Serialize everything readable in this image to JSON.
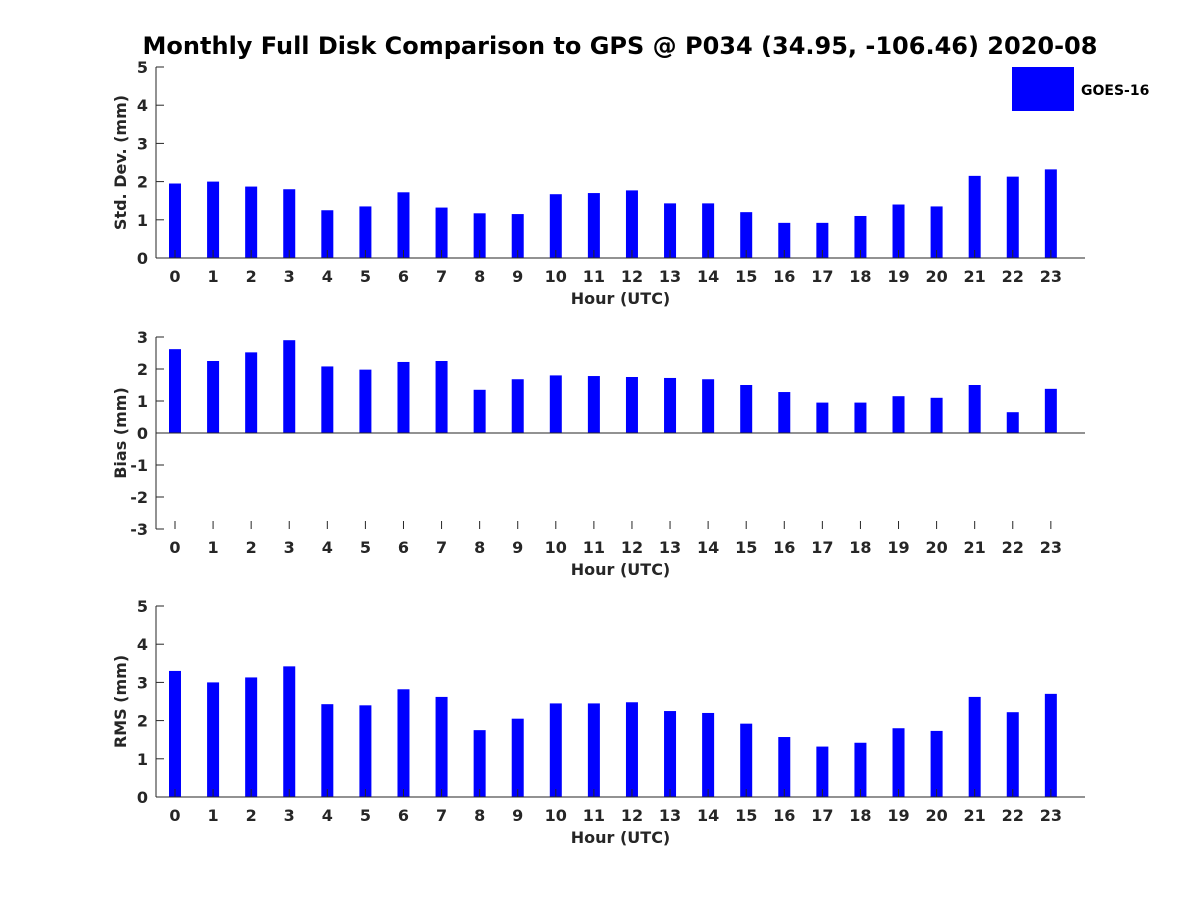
{
  "title": "Monthly Full Disk Comparison to GPS @ P034 (34.95, -106.46) 2020-08",
  "legend": {
    "label": "GOES-16",
    "color": "#0000ff"
  },
  "chart_data": [
    {
      "type": "bar",
      "name": "std",
      "categories": [
        "0",
        "1",
        "2",
        "3",
        "4",
        "5",
        "6",
        "7",
        "8",
        "9",
        "10",
        "11",
        "12",
        "13",
        "14",
        "15",
        "16",
        "17",
        "18",
        "19",
        "20",
        "21",
        "22",
        "23"
      ],
      "values": [
        1.95,
        2.0,
        1.87,
        1.8,
        1.25,
        1.35,
        1.72,
        1.32,
        1.17,
        1.15,
        1.67,
        1.7,
        1.77,
        1.43,
        1.43,
        1.2,
        0.92,
        0.92,
        1.1,
        1.4,
        1.35,
        2.15,
        2.13,
        2.32
      ],
      "series": [
        {
          "name": "GOES-16",
          "values": [
            1.95,
            2.0,
            1.87,
            1.8,
            1.25,
            1.35,
            1.72,
            1.32,
            1.17,
            1.15,
            1.67,
            1.7,
            1.77,
            1.43,
            1.43,
            1.2,
            0.92,
            0.92,
            1.1,
            1.4,
            1.35,
            2.15,
            2.13,
            2.32
          ]
        }
      ],
      "xlabel": "Hour (UTC)",
      "ylabel": "Std. Dev. (mm)",
      "ylim": [
        0,
        5
      ],
      "yticks": [
        "0",
        "1",
        "2",
        "3",
        "4",
        "5"
      ],
      "grid": false
    },
    {
      "type": "bar",
      "name": "bias",
      "categories": [
        "0",
        "1",
        "2",
        "3",
        "4",
        "5",
        "6",
        "7",
        "8",
        "9",
        "10",
        "11",
        "12",
        "13",
        "14",
        "15",
        "16",
        "17",
        "18",
        "19",
        "20",
        "21",
        "22",
        "23"
      ],
      "values": [
        2.62,
        2.25,
        2.52,
        2.9,
        2.08,
        1.98,
        2.22,
        2.25,
        1.35,
        1.68,
        1.8,
        1.78,
        1.75,
        1.72,
        1.68,
        1.5,
        1.28,
        0.95,
        0.95,
        1.15,
        1.1,
        1.5,
        0.65,
        1.38
      ],
      "series": [
        {
          "name": "GOES-16",
          "values": [
            2.62,
            2.25,
            2.52,
            2.9,
            2.08,
            1.98,
            2.22,
            2.25,
            1.35,
            1.68,
            1.8,
            1.78,
            1.75,
            1.72,
            1.68,
            1.5,
            1.28,
            0.95,
            0.95,
            1.15,
            1.1,
            1.5,
            0.65,
            1.38
          ]
        }
      ],
      "xlabel": "Hour (UTC)",
      "ylabel": "Bias (mm)",
      "ylim": [
        -3,
        3
      ],
      "yticks": [
        "-3",
        "-2",
        "-1",
        "0",
        "1",
        "2",
        "3"
      ],
      "grid": false
    },
    {
      "type": "bar",
      "name": "rms",
      "categories": [
        "0",
        "1",
        "2",
        "3",
        "4",
        "5",
        "6",
        "7",
        "8",
        "9",
        "10",
        "11",
        "12",
        "13",
        "14",
        "15",
        "16",
        "17",
        "18",
        "19",
        "20",
        "21",
        "22",
        "23"
      ],
      "values": [
        3.3,
        3.0,
        3.13,
        3.42,
        2.43,
        2.4,
        2.82,
        2.62,
        1.75,
        2.05,
        2.45,
        2.45,
        2.48,
        2.25,
        2.2,
        1.92,
        1.57,
        1.32,
        1.42,
        1.8,
        1.73,
        2.62,
        2.22,
        2.7
      ],
      "series": [
        {
          "name": "GOES-16",
          "values": [
            3.3,
            3.0,
            3.13,
            3.42,
            2.43,
            2.4,
            2.82,
            2.62,
            1.75,
            2.05,
            2.45,
            2.45,
            2.48,
            2.25,
            2.2,
            1.92,
            1.57,
            1.32,
            1.42,
            1.8,
            1.73,
            2.62,
            2.22,
            2.7
          ]
        }
      ],
      "xlabel": "Hour (UTC)",
      "ylabel": "RMS (mm)",
      "ylim": [
        0,
        5
      ],
      "yticks": [
        "0",
        "1",
        "2",
        "3",
        "4",
        "5"
      ],
      "grid": false
    }
  ]
}
